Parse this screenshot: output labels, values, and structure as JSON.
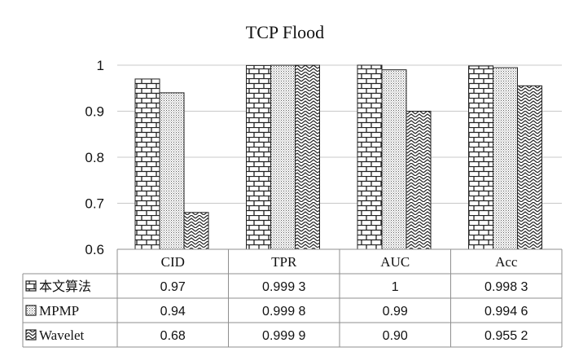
{
  "chart_data": {
    "type": "bar",
    "title": "TCP Flood",
    "categories": [
      "CID",
      "TPR",
      "AUC",
      "Acc"
    ],
    "ylim": [
      0.6,
      1
    ],
    "yticks": [
      0.6,
      0.7,
      0.8,
      0.9,
      1
    ],
    "ytick_labels": [
      "0.6",
      "0.7",
      "0.8",
      "0.9",
      "1"
    ],
    "grid": true,
    "legend_placement": "data-table-left",
    "series": [
      {
        "name": "本文算法",
        "pattern": "brick",
        "values": [
          0.97,
          0.9993,
          1,
          0.9983
        ],
        "labels": [
          "0.97",
          "0.999 3",
          "1",
          "0.998 3"
        ]
      },
      {
        "name": "MPMP",
        "pattern": "dots",
        "values": [
          0.94,
          0.9998,
          0.99,
          0.9946
        ],
        "labels": [
          "0.94",
          "0.999 8",
          "0.99",
          "0.994 6"
        ]
      },
      {
        "name": "Wavelet",
        "pattern": "zigzag",
        "values": [
          0.68,
          0.9999,
          0.9,
          0.9552
        ],
        "labels": [
          "0.68",
          "0.999 9",
          "0.90",
          "0.955 2"
        ]
      }
    ]
  }
}
